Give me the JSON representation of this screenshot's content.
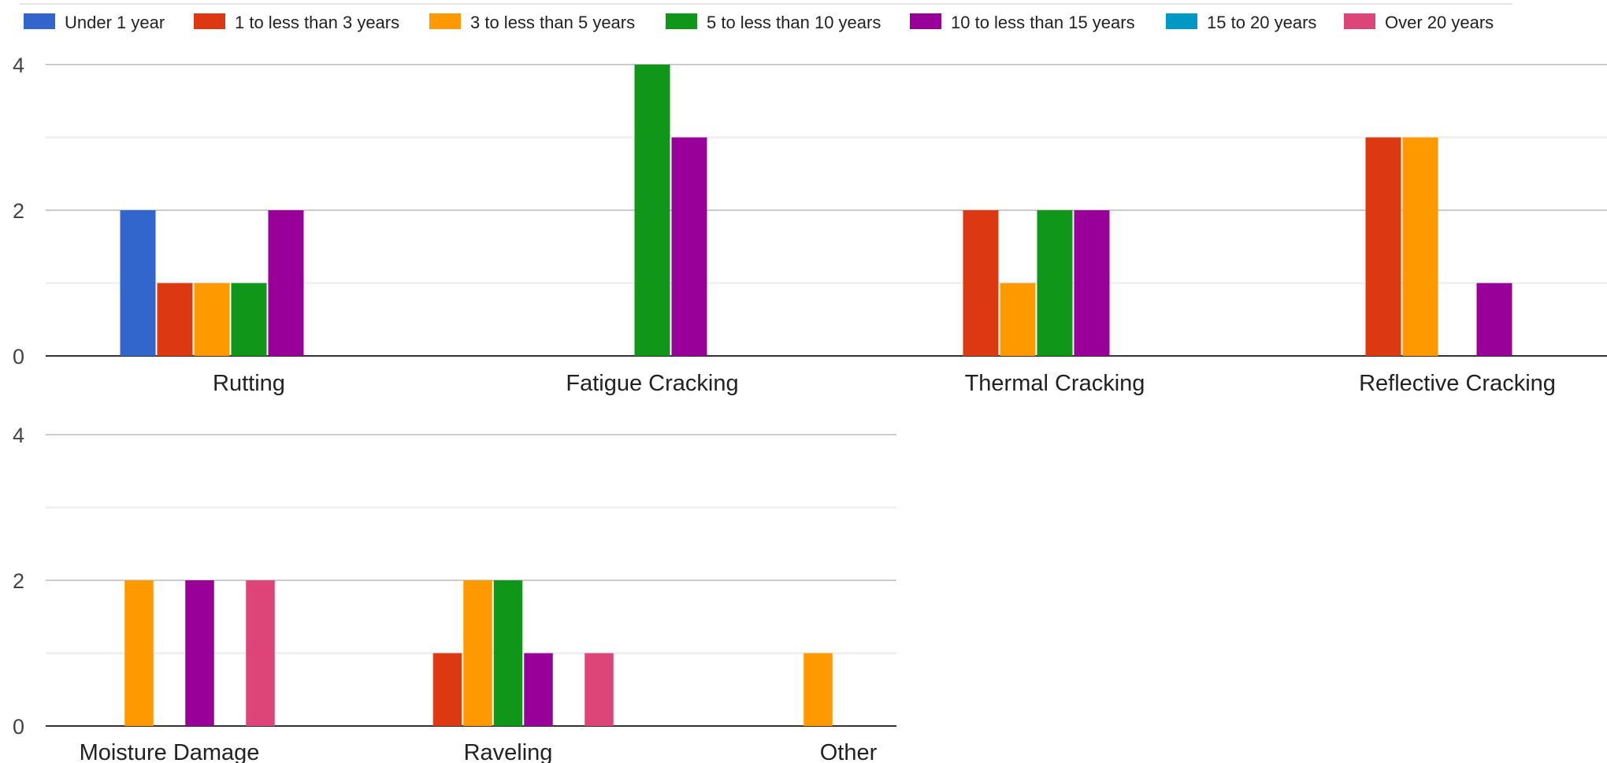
{
  "chart_data": {
    "type": "bar",
    "series": [
      {
        "name": "Under 1 year",
        "color": "#3366cc"
      },
      {
        "name": "1 to less than 3 years",
        "color": "#dc3912"
      },
      {
        "name": "3 to less than 5 years",
        "color": "#ff9900"
      },
      {
        "name": "5 to less than 10 years",
        "color": "#109618"
      },
      {
        "name": "10 to less than 15 years",
        "color": "#990099"
      },
      {
        "name": "15 to 20 years",
        "color": "#0099c6"
      },
      {
        "name": "Over 20 years",
        "color": "#dd4477"
      }
    ],
    "categories": [
      "Rutting",
      "Fatigue Cracking",
      "Thermal Cracking",
      "Reflective Cracking",
      "Moisture Damage",
      "Raveling",
      "Other"
    ],
    "values": [
      [
        2,
        1,
        1,
        1,
        2,
        0,
        0
      ],
      [
        0,
        0,
        0,
        4,
        3,
        0,
        0
      ],
      [
        0,
        2,
        1,
        2,
        2,
        0,
        0
      ],
      [
        0,
        3,
        3,
        0,
        1,
        0,
        0
      ],
      [
        0,
        0,
        2,
        0,
        2,
        0,
        2
      ],
      [
        0,
        1,
        2,
        2,
        1,
        0,
        1
      ],
      [
        0,
        0,
        1,
        0,
        0,
        0,
        0
      ]
    ],
    "ylim": [
      0,
      4
    ],
    "yticks": [
      "0",
      "2",
      "4"
    ],
    "grid": true,
    "legend_position": "top",
    "xlabel": "",
    "ylabel": "",
    "title": ""
  }
}
